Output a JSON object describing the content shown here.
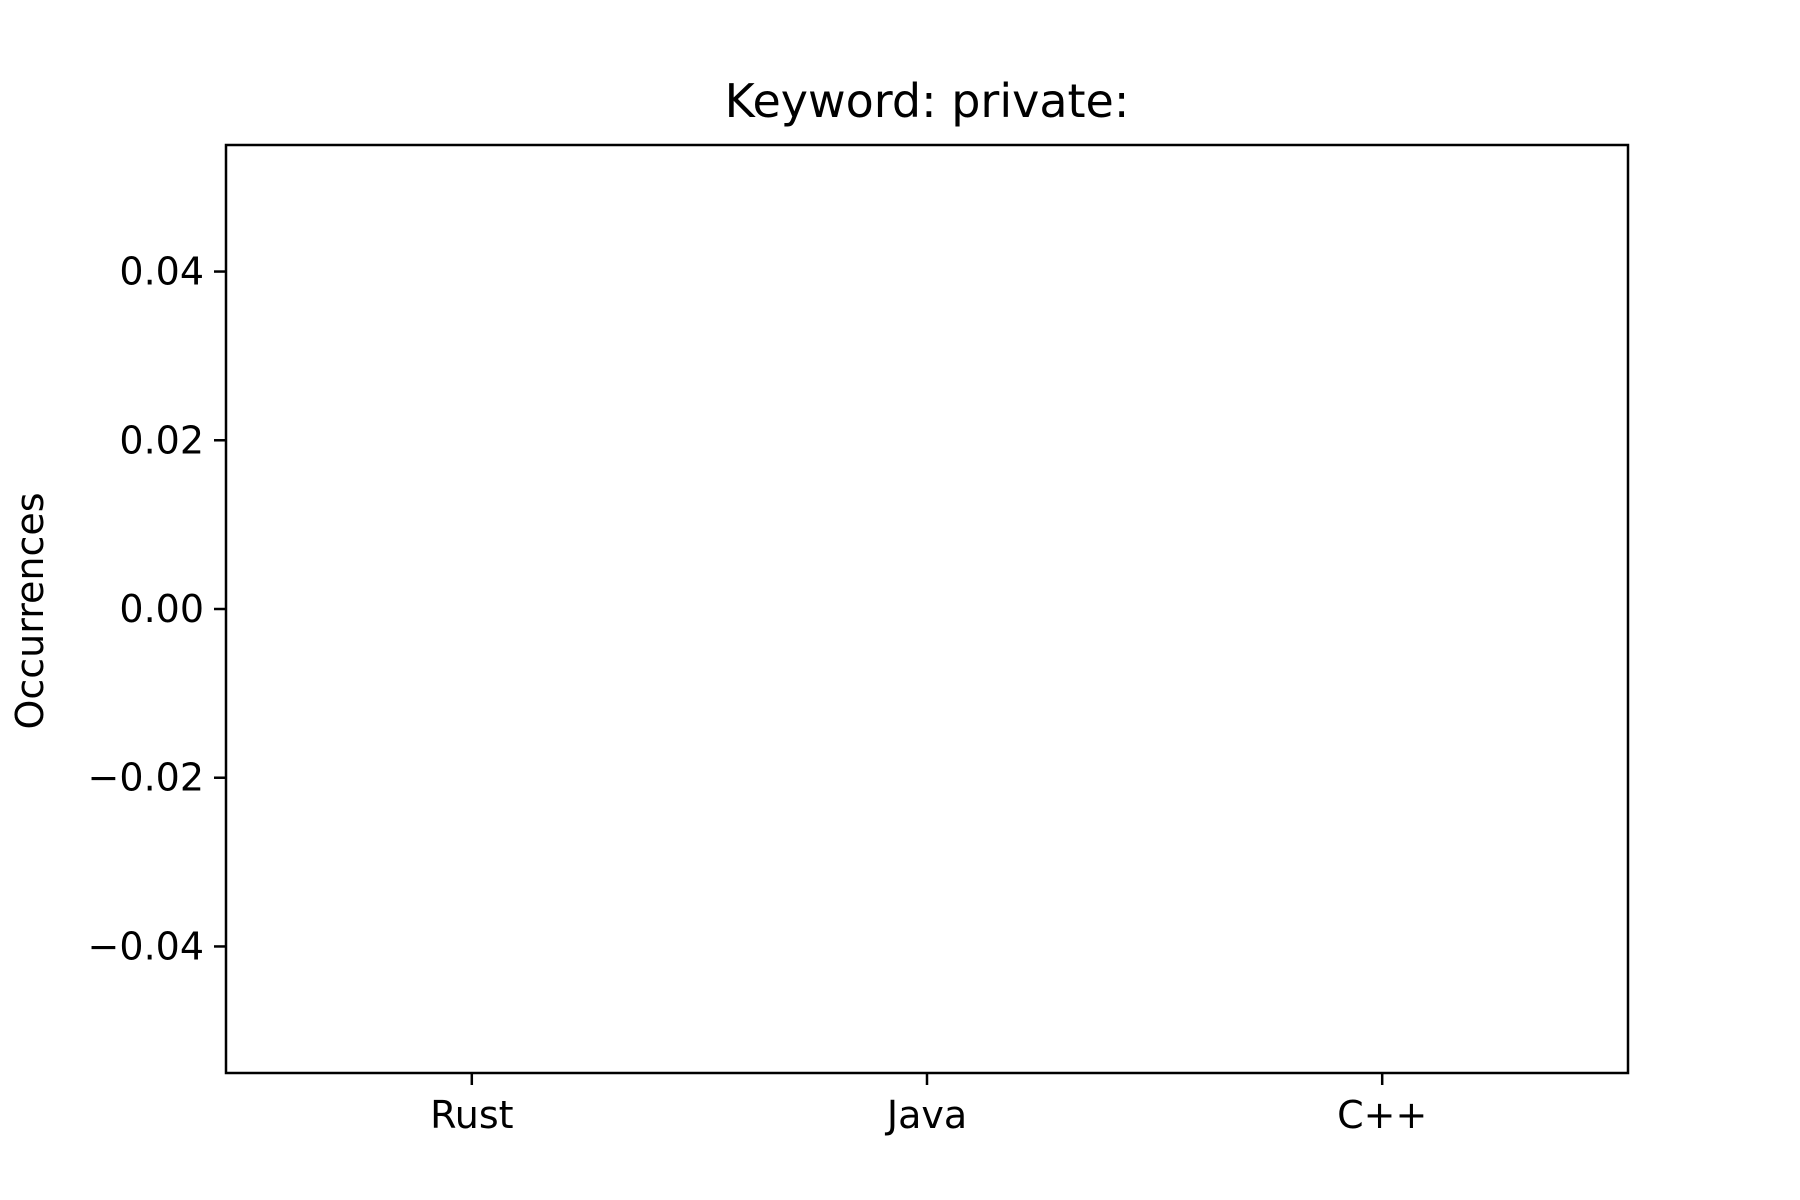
{
  "chart_data": {
    "type": "bar",
    "title": "Keyword: private:",
    "xlabel": "",
    "ylabel": "Occurrences",
    "categories": [
      "Rust",
      "Java",
      "C++"
    ],
    "values": [
      0,
      0,
      0
    ],
    "ylim": [
      -0.055,
      0.055
    ],
    "yticks": [
      0.04,
      0.02,
      0.0,
      -0.02,
      -0.04
    ],
    "ytick_labels": [
      "0.04",
      "0.02",
      "0.00",
      "−0.02",
      "−0.04"
    ],
    "grid": false,
    "legend": "none"
  }
}
